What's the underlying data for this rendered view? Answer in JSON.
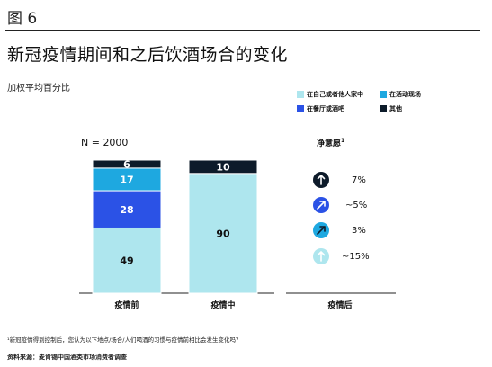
{
  "figure_label": "图 6",
  "title": "新冠疫情期间和之后饮酒场合的变化",
  "subtitle": "加权平均百分比",
  "legend": [
    {
      "label": "在自己或者他人家中",
      "color": "#aee6ee"
    },
    {
      "label": "在活动现场",
      "color": "#1ea8e0"
    },
    {
      "label": "在餐厅或酒吧",
      "color": "#2b52e6"
    },
    {
      "label": "其他",
      "color": "#0d1b2a"
    }
  ],
  "n_label": "N = 2000",
  "net_intention": {
    "header": "净意愿",
    "footnote_marker": "1",
    "items": [
      {
        "value": "7%",
        "icon": "arrow-up-icon",
        "fill": "#0d1b2a",
        "stroke": "#0d1b2a",
        "arrow": "#ffffff",
        "dir": "up"
      },
      {
        "value": "~5%",
        "icon": "arrow-up-right-icon",
        "fill": "#2b52e6",
        "stroke": "#2b52e6",
        "arrow": "#ffffff",
        "dir": "diag"
      },
      {
        "value": "3%",
        "icon": "arrow-up-right-icon",
        "fill": "#1ea8e0",
        "stroke": "#1ea8e0",
        "arrow": "#0d1b2a",
        "dir": "diag"
      },
      {
        "value": "~15%",
        "icon": "arrow-up-icon",
        "fill": "#aee6ee",
        "stroke": "#aee6ee",
        "arrow": "#ffffff",
        "dir": "up"
      }
    ]
  },
  "chart_data": {
    "type": "bar",
    "stacked": true,
    "categories": [
      "疫情前",
      "疫情中"
    ],
    "series": [
      {
        "name": "在自己或者他人家中",
        "color": "#aee6ee",
        "values": [
          49,
          90
        ]
      },
      {
        "name": "在餐厅或酒吧",
        "color": "#2b52e6",
        "values": [
          28,
          0
        ]
      },
      {
        "name": "在活动现场",
        "color": "#1ea8e0",
        "values": [
          17,
          0
        ]
      },
      {
        "name": "其他",
        "color": "#0d1b2a",
        "values": [
          6,
          10
        ]
      }
    ],
    "ylim": [
      0,
      100
    ],
    "after_category": "疫情后"
  },
  "footnote": "¹新冠疫情得到控制后，您认为以下地点/场合/人们喝酒的习惯与疫情前相比会发生变化吗？",
  "source": "资料来源：麦肯锡中国酒类市场消费者调查"
}
